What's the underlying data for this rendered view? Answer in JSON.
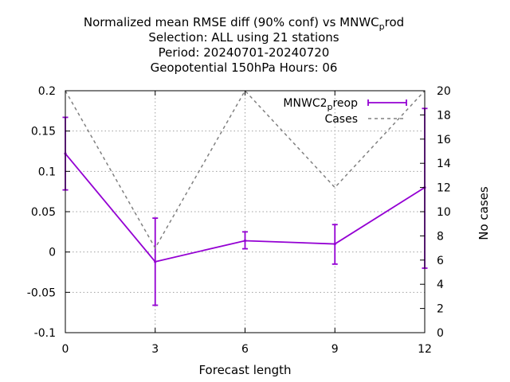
{
  "chart_data": {
    "type": "line",
    "title_lines": [
      {
        "main": "Normalized mean RMSE diff (90% conf) vs MNWC",
        "sub": "p",
        "after": "rod"
      },
      {
        "main": "Selection: ALL using    21 stations"
      },
      {
        "main": "Period: 20240701-20240720"
      },
      {
        "main": "Geopotential 150hPa   Hours:  06"
      }
    ],
    "xlabel": "Forecast length",
    "ylabel": "",
    "y2label": "No cases",
    "x": [
      0,
      3,
      6,
      9,
      12
    ],
    "xlim": [
      0,
      12
    ],
    "ylim": [
      -0.1,
      0.2
    ],
    "y2lim": [
      0,
      20
    ],
    "xticks": [
      "0",
      "3",
      "6",
      "9",
      "12"
    ],
    "yticks": [
      "-0.1",
      "-0.05",
      "0",
      "0.05",
      "0.1",
      "0.15",
      "0.2"
    ],
    "y2ticks": [
      "0",
      "2",
      "4",
      "6",
      "8",
      "10",
      "12",
      "14",
      "16",
      "18",
      "20"
    ],
    "grid": true,
    "legend_position": "top-right",
    "series": [
      {
        "name_main": "MNWC2",
        "name_sub": "p",
        "name_after": "reop",
        "axis": "y1",
        "style": "line-errorbars",
        "color": "#9400d3",
        "values": [
          0.122,
          -0.012,
          0.014,
          0.01,
          0.08
        ],
        "err_low": [
          0.077,
          -0.066,
          0.004,
          -0.015,
          -0.02
        ],
        "err_high": [
          0.167,
          0.042,
          0.025,
          0.034,
          0.178
        ]
      },
      {
        "name": "Cases",
        "axis": "y2",
        "style": "dashed",
        "color": "#808080",
        "values": [
          20,
          7,
          20,
          12,
          20
        ]
      }
    ]
  }
}
